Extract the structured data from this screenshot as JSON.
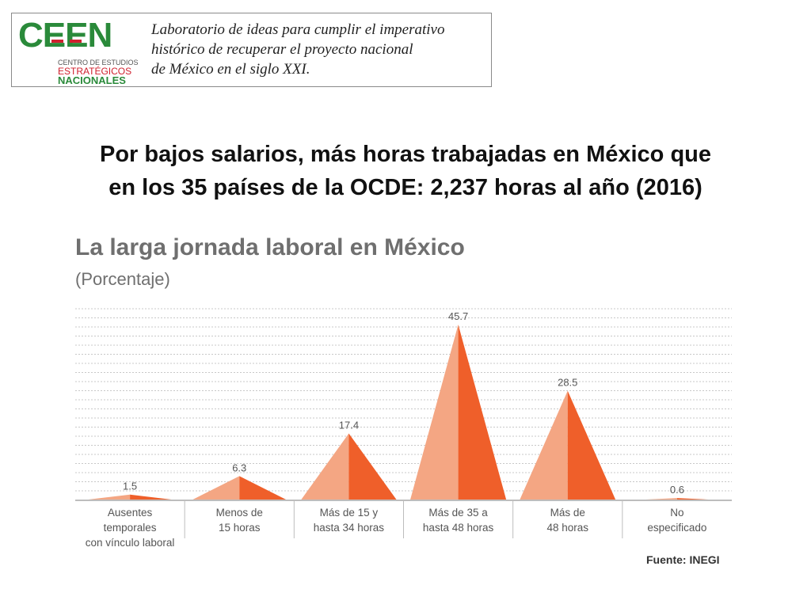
{
  "header": {
    "logo_text": "CEEN",
    "logo_line1": "CENTRO DE ESTUDIOS",
    "logo_line2": "ESTRATÉGICOS",
    "logo_line3": "NACIONALES",
    "tagline_lines": [
      "Laboratorio de ideas para cumplir el imperativo",
      "histórico de recuperar el proyecto nacional",
      "de México en el siglo XXI."
    ]
  },
  "headline_lines": [
    "Por bajos salarios, más horas trabajadas en México que",
    "en los 35 países de la OCDE: 2,237 horas al año (2016)"
  ],
  "chart_data": {
    "type": "bar",
    "title": "La larga jornada laboral en México",
    "subtitle": "(Porcentaje)",
    "categories": [
      [
        "Ausentes",
        "temporales",
        "con vínculo laboral"
      ],
      [
        "Menos de",
        "15 horas"
      ],
      [
        "Más de 15 y",
        "hasta 34 horas"
      ],
      [
        "Más de 35 a",
        "hasta 48 horas"
      ],
      [
        "Más de",
        "48 horas"
      ],
      [
        "No",
        "especificado"
      ]
    ],
    "values": [
      1.5,
      6.3,
      17.4,
      45.7,
      28.5,
      0.6
    ],
    "value_labels": [
      "1.5",
      "6.3",
      "17.4",
      "45.7",
      "28.5",
      "0.6"
    ],
    "ylim": [
      0,
      50
    ],
    "grid": true,
    "colors": {
      "light": "#f4a683",
      "dark": "#ef5f2a",
      "grid": "#c8c8c8",
      "axis": "#bdbdbd"
    },
    "source": "Fuente: INEGI"
  }
}
